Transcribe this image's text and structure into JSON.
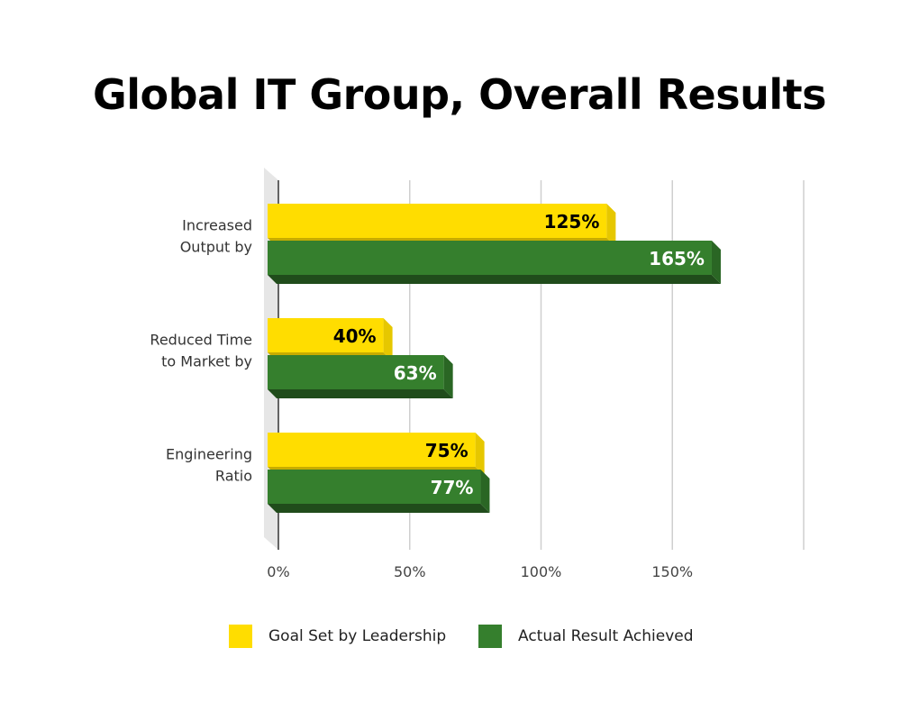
{
  "chart_data": {
    "type": "bar",
    "orientation": "horizontal",
    "title": "Global IT Group, Overall Results",
    "categories": [
      [
        "Increased",
        "Output by"
      ],
      [
        "Reduced Time",
        "to Market by"
      ],
      [
        "Engineering",
        "Ratio"
      ]
    ],
    "series": [
      {
        "name": "Goal Set by Leadership",
        "color": "#FFDD00",
        "values": [
          125,
          40,
          75
        ],
        "labels": [
          "125%",
          "40%",
          "75%"
        ]
      },
      {
        "name": "Actual Result Achieved",
        "color": "#357F2D",
        "values": [
          165,
          63,
          77
        ],
        "labels": [
          "165%",
          "63%",
          "77%"
        ]
      }
    ],
    "xlim": [
      0,
      200
    ],
    "xticks": [
      0,
      50,
      100,
      150
    ],
    "xtick_labels": [
      "0%",
      "50%",
      "100%",
      "150%"
    ],
    "grid": true,
    "legend_position": "bottom"
  }
}
